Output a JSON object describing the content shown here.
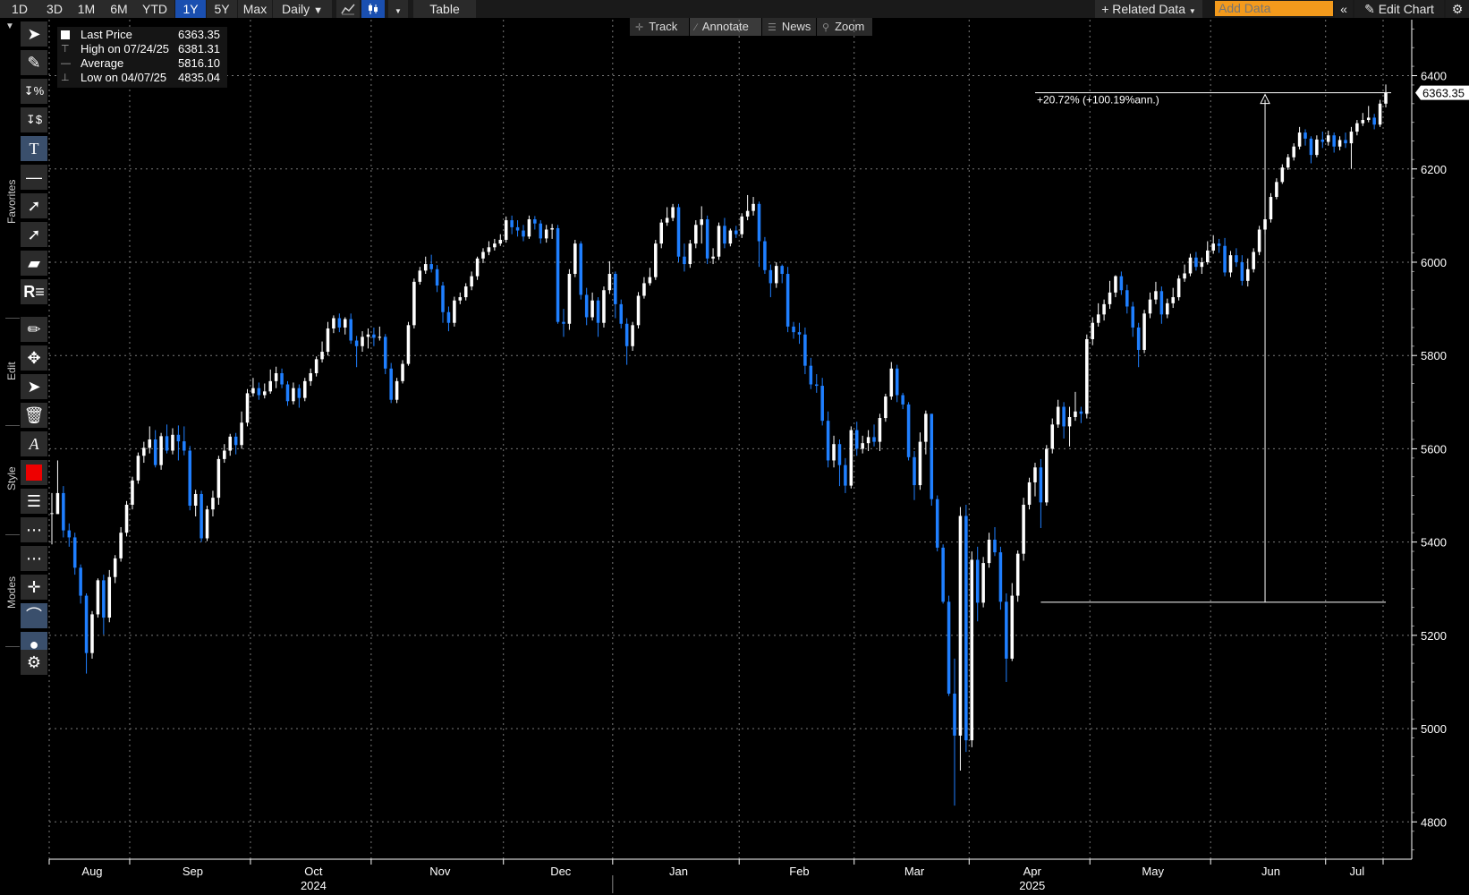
{
  "toolbar": {
    "periods": [
      "1D",
      "3D",
      "1M",
      "6M",
      "YTD",
      "1Y",
      "5Y",
      "Max"
    ],
    "active_period": "1Y",
    "frequency": "Daily",
    "table_label": "Table",
    "related_data": "Related Data",
    "add_data_placeholder": "Add Data",
    "edit_chart": "Edit Chart"
  },
  "subtoolbar": {
    "track": "Track",
    "annotate": "Annotate",
    "news": "News",
    "zoom": "Zoom"
  },
  "rail": {
    "favorites": "Favorites",
    "edit": "Edit",
    "style": "Style",
    "modes": "Modes"
  },
  "legend": {
    "rows": [
      {
        "name": "Last Price",
        "value": "6363.35"
      },
      {
        "name": "High on 07/24/25",
        "value": "6381.31"
      },
      {
        "name": "Average",
        "value": "5816.10"
      },
      {
        "name": "Low on 04/07/25",
        "value": "4835.04"
      }
    ]
  },
  "colors": {
    "up": "#ffffff",
    "down": "#1f7fff",
    "background": "#000000",
    "grid": "#7a7a7a",
    "price_label_bg": "#ffffff"
  },
  "chart_data": {
    "type": "candlestick",
    "frequency": "Daily",
    "ylim": [
      4720,
      6520
    ],
    "y_ticks": [
      4800,
      5000,
      5200,
      5400,
      5600,
      5800,
      6000,
      6200,
      6400
    ],
    "x_tick_labels": [
      "Aug",
      "Sep",
      "Oct",
      "Nov",
      "Dec",
      "Jan",
      "Feb",
      "Mar",
      "Apr",
      "May",
      "Jun",
      "Jul"
    ],
    "year_labels": [
      "2024",
      "2025"
    ],
    "last_price_label": "6363.35",
    "annotation": {
      "text": "+20.72% (+100.19%ann.)",
      "from_price": 5271,
      "to_price": 6363.35
    },
    "candles": [
      [
        5462,
        5462,
        5505,
        5395
      ],
      [
        5460,
        5505,
        5575,
        5500
      ],
      [
        5505,
        5425,
        5520,
        5410
      ],
      [
        5425,
        5410,
        5440,
        5390
      ],
      [
        5410,
        5345,
        5420,
        5330
      ],
      [
        5345,
        5285,
        5352,
        5268
      ],
      [
        5285,
        5162,
        5290,
        5118
      ],
      [
        5162,
        5245,
        5252,
        5150
      ],
      [
        5245,
        5318,
        5322,
        5238
      ],
      [
        5318,
        5238,
        5330,
        5202
      ],
      [
        5238,
        5325,
        5340,
        5228
      ],
      [
        5325,
        5365,
        5372,
        5312
      ],
      [
        5365,
        5420,
        5432,
        5358
      ],
      [
        5420,
        5480,
        5488,
        5412
      ],
      [
        5480,
        5532,
        5540,
        5470
      ],
      [
        5532,
        5585,
        5592,
        5525
      ],
      [
        5585,
        5602,
        5615,
        5570
      ],
      [
        5602,
        5620,
        5648,
        5590
      ],
      [
        5620,
        5565,
        5640,
        5560
      ],
      [
        5565,
        5627,
        5634,
        5555
      ],
      [
        5627,
        5596,
        5652,
        5590
      ],
      [
        5596,
        5630,
        5644,
        5588
      ],
      [
        5630,
        5616,
        5650,
        5575
      ],
      [
        5616,
        5596,
        5648,
        5586
      ],
      [
        5596,
        5478,
        5606,
        5468
      ],
      [
        5478,
        5503,
        5512,
        5455
      ],
      [
        5503,
        5408,
        5510,
        5400
      ],
      [
        5408,
        5470,
        5478,
        5402
      ],
      [
        5470,
        5495,
        5510,
        5455
      ],
      [
        5495,
        5578,
        5585,
        5480
      ],
      [
        5578,
        5596,
        5610,
        5570
      ],
      [
        5596,
        5626,
        5632,
        5585
      ],
      [
        5626,
        5608,
        5634,
        5588
      ],
      [
        5608,
        5656,
        5680,
        5600
      ],
      [
        5656,
        5719,
        5728,
        5648
      ],
      [
        5719,
        5730,
        5752,
        5712
      ],
      [
        5730,
        5715,
        5742,
        5705
      ],
      [
        5715,
        5723,
        5740,
        5708
      ],
      [
        5723,
        5745,
        5770,
        5718
      ],
      [
        5745,
        5762,
        5776,
        5730
      ],
      [
        5762,
        5738,
        5772,
        5730
      ],
      [
        5738,
        5702,
        5745,
        5692
      ],
      [
        5702,
        5730,
        5742,
        5695
      ],
      [
        5730,
        5709,
        5738,
        5688
      ],
      [
        5709,
        5745,
        5752,
        5702
      ],
      [
        5745,
        5762,
        5772,
        5735
      ],
      [
        5762,
        5792,
        5798,
        5755
      ],
      [
        5792,
        5808,
        5830,
        5785
      ],
      [
        5808,
        5858,
        5872,
        5800
      ],
      [
        5858,
        5880,
        5886,
        5848
      ],
      [
        5880,
        5860,
        5890,
        5850
      ],
      [
        5860,
        5878,
        5882,
        5845
      ],
      [
        5878,
        5832,
        5890,
        5825
      ],
      [
        5832,
        5820,
        5842,
        5775
      ],
      [
        5820,
        5840,
        5852,
        5808
      ],
      [
        5840,
        5845,
        5858,
        5815
      ],
      [
        5845,
        5838,
        5860,
        5820
      ],
      [
        5838,
        5840,
        5862,
        5832
      ],
      [
        5840,
        5772,
        5846,
        5760
      ],
      [
        5772,
        5705,
        5784,
        5698
      ],
      [
        5705,
        5745,
        5752,
        5698
      ],
      [
        5745,
        5782,
        5790,
        5740
      ],
      [
        5782,
        5865,
        5872,
        5778
      ],
      [
        5865,
        5958,
        5965,
        5858
      ],
      [
        5958,
        5982,
        5990,
        5952
      ],
      [
        5982,
        5996,
        6012,
        5975
      ],
      [
        5996,
        5985,
        6016,
        5978
      ],
      [
        5985,
        5950,
        5994,
        5936
      ],
      [
        5950,
        5893,
        5958,
        5870
      ],
      [
        5893,
        5870,
        5905,
        5852
      ],
      [
        5870,
        5918,
        5926,
        5862
      ],
      [
        5918,
        5925,
        5935,
        5910
      ],
      [
        5925,
        5948,
        5955,
        5918
      ],
      [
        5948,
        5970,
        5980,
        5940
      ],
      [
        5970,
        6008,
        6012,
        5962
      ],
      [
        6008,
        6022,
        6030,
        5998
      ],
      [
        6022,
        6032,
        6045,
        6015
      ],
      [
        6032,
        6040,
        6050,
        6025
      ],
      [
        6040,
        6048,
        6060,
        6035
      ],
      [
        6048,
        6090,
        6098,
        6042
      ],
      [
        6090,
        6075,
        6100,
        6060
      ],
      [
        6075,
        6068,
        6090,
        6055
      ],
      [
        6068,
        6055,
        6080,
        6045
      ],
      [
        6055,
        6092,
        6100,
        6050
      ],
      [
        6092,
        6083,
        6099,
        6070
      ],
      [
        6083,
        6051,
        6090,
        6040
      ],
      [
        6051,
        6070,
        6080,
        6042
      ],
      [
        6070,
        6073,
        6082,
        6050
      ],
      [
        6073,
        5872,
        6080,
        5868
      ],
      [
        5872,
        5868,
        5900,
        5840
      ],
      [
        5868,
        5975,
        5985,
        5855
      ],
      [
        5975,
        6040,
        6048,
        5968
      ],
      [
        6040,
        5930,
        6045,
        5920
      ],
      [
        5930,
        5882,
        5945,
        5865
      ],
      [
        5882,
        5918,
        5935,
        5875
      ],
      [
        5918,
        5870,
        5925,
        5840
      ],
      [
        5870,
        5940,
        5948,
        5860
      ],
      [
        5940,
        5975,
        6002,
        5932
      ],
      [
        5975,
        5910,
        5980,
        5880
      ],
      [
        5910,
        5868,
        5920,
        5858
      ],
      [
        5868,
        5820,
        5880,
        5780
      ],
      [
        5820,
        5865,
        5872,
        5810
      ],
      [
        5865,
        5928,
        5936,
        5858
      ],
      [
        5928,
        5955,
        5968,
        5922
      ],
      [
        5955,
        5968,
        5988,
        5950
      ],
      [
        5968,
        6040,
        6048,
        5962
      ],
      [
        6040,
        6085,
        6092,
        6030
      ],
      [
        6085,
        6095,
        6118,
        6078
      ],
      [
        6095,
        6118,
        6125,
        6088
      ],
      [
        6118,
        6012,
        6125,
        6000
      ],
      [
        6012,
        5996,
        6040,
        5980
      ],
      [
        5996,
        6040,
        6048,
        5988
      ],
      [
        6040,
        6080,
        6090,
        6030
      ],
      [
        6080,
        6092,
        6120,
        6040
      ],
      [
        6092,
        6008,
        6100,
        5996
      ],
      [
        6008,
        6012,
        6030,
        5996
      ],
      [
        6012,
        6078,
        6085,
        6005
      ],
      [
        6078,
        6040,
        6095,
        6030
      ],
      [
        6040,
        6068,
        6072,
        6034
      ],
      [
        6068,
        6060,
        6078,
        6052
      ],
      [
        6060,
        6098,
        6105,
        6052
      ],
      [
        6098,
        6110,
        6144,
        6090
      ],
      [
        6110,
        6125,
        6140,
        6100
      ],
      [
        6125,
        6045,
        6130,
        5990
      ],
      [
        6045,
        5983,
        6054,
        5975
      ],
      [
        5983,
        5955,
        5995,
        5925
      ],
      [
        5955,
        5992,
        6000,
        5945
      ],
      [
        5992,
        5975,
        5995,
        5955
      ],
      [
        5975,
        5862,
        5990,
        5850
      ],
      [
        5862,
        5850,
        5872,
        5836
      ],
      [
        5850,
        5845,
        5870,
        5825
      ],
      [
        5845,
        5778,
        5860,
        5760
      ],
      [
        5778,
        5738,
        5795,
        5728
      ],
      [
        5738,
        5735,
        5760,
        5720
      ],
      [
        5735,
        5660,
        5752,
        5650
      ],
      [
        5660,
        5575,
        5680,
        5560
      ],
      [
        5575,
        5610,
        5628,
        5560
      ],
      [
        5610,
        5565,
        5620,
        5520
      ],
      [
        5565,
        5521,
        5580,
        5505
      ],
      [
        5521,
        5640,
        5648,
        5515
      ],
      [
        5640,
        5600,
        5658,
        5585
      ],
      [
        5600,
        5612,
        5628,
        5590
      ],
      [
        5612,
        5625,
        5640,
        5595
      ],
      [
        5625,
        5615,
        5652,
        5605
      ],
      [
        5615,
        5666,
        5675,
        5595
      ],
      [
        5666,
        5712,
        5718,
        5658
      ],
      [
        5712,
        5772,
        5786,
        5705
      ],
      [
        5772,
        5715,
        5780,
        5700
      ],
      [
        5715,
        5695,
        5720,
        5685
      ],
      [
        5695,
        5582,
        5700,
        5575
      ],
      [
        5582,
        5522,
        5595,
        5490
      ],
      [
        5522,
        5615,
        5635,
        5512
      ],
      [
        5615,
        5675,
        5682,
        5588
      ],
      [
        5675,
        5492,
        5675,
        5478
      ],
      [
        5492,
        5388,
        5500,
        5380
      ],
      [
        5388,
        5272,
        5395,
        5268
      ],
      [
        5272,
        5075,
        5285,
        5070
      ],
      [
        5075,
        4985,
        5150,
        4835
      ],
      [
        4985,
        5456,
        5475,
        4910
      ],
      [
        5456,
        4975,
        5480,
        4950
      ],
      [
        4975,
        5362,
        5380,
        4960
      ],
      [
        5362,
        5270,
        5390,
        5230
      ],
      [
        5270,
        5355,
        5368,
        5260
      ],
      [
        5355,
        5405,
        5420,
        5345
      ],
      [
        5405,
        5378,
        5432,
        5370
      ],
      [
        5378,
        5272,
        5390,
        5255
      ],
      [
        5272,
        5150,
        5290,
        5100
      ],
      [
        5150,
        5285,
        5312,
        5145
      ],
      [
        5285,
        5375,
        5382,
        5272
      ],
      [
        5375,
        5480,
        5495,
        5360
      ],
      [
        5480,
        5528,
        5538,
        5470
      ],
      [
        5528,
        5560,
        5570,
        5498
      ],
      [
        5560,
        5485,
        5578,
        5430
      ],
      [
        5485,
        5600,
        5608,
        5478
      ],
      [
        5600,
        5652,
        5665,
        5590
      ],
      [
        5652,
        5690,
        5705,
        5645
      ],
      [
        5690,
        5648,
        5700,
        5622
      ],
      [
        5648,
        5668,
        5690,
        5605
      ],
      [
        5668,
        5680,
        5722,
        5660
      ],
      [
        5680,
        5675,
        5690,
        5655
      ],
      [
        5675,
        5835,
        5845,
        5665
      ],
      [
        5835,
        5870,
        5882,
        5822
      ],
      [
        5870,
        5888,
        5912,
        5862
      ],
      [
        5888,
        5910,
        5920,
        5875
      ],
      [
        5910,
        5935,
        5960,
        5900
      ],
      [
        5935,
        5970,
        5972,
        5925
      ],
      [
        5970,
        5940,
        5980,
        5930
      ],
      [
        5940,
        5905,
        5952,
        5890
      ],
      [
        5905,
        5860,
        5915,
        5840
      ],
      [
        5860,
        5812,
        5870,
        5775
      ],
      [
        5812,
        5890,
        5898,
        5805
      ],
      [
        5890,
        5920,
        5935,
        5880
      ],
      [
        5920,
        5938,
        5958,
        5910
      ],
      [
        5938,
        5888,
        5948,
        5868
      ],
      [
        5888,
        5912,
        5922,
        5880
      ],
      [
        5912,
        5925,
        5945,
        5902
      ],
      [
        5925,
        5965,
        5972,
        5918
      ],
      [
        5965,
        5976,
        5995,
        5958
      ],
      [
        5976,
        6010,
        6018,
        5970
      ],
      [
        6010,
        5990,
        6022,
        5982
      ],
      [
        5990,
        6000,
        6010,
        5975
      ],
      [
        6000,
        6025,
        6045,
        5995
      ],
      [
        6025,
        6040,
        6058,
        6018
      ],
      [
        6040,
        6035,
        6050,
        6020
      ],
      [
        6035,
        5978,
        6052,
        5970
      ],
      [
        5978,
        6015,
        6024,
        5968
      ],
      [
        6015,
        6000,
        6030,
        5990
      ],
      [
        6000,
        5960,
        6015,
        5950
      ],
      [
        5960,
        5985,
        6008,
        5948
      ],
      [
        5985,
        6022,
        6030,
        5978
      ],
      [
        6022,
        6070,
        6078,
        6015
      ],
      [
        6070,
        6092,
        6100,
        6060
      ],
      [
        6092,
        6140,
        6148,
        6085
      ],
      [
        6140,
        6172,
        6180,
        6135
      ],
      [
        6172,
        6203,
        6210,
        6168
      ],
      [
        6203,
        6225,
        6232,
        6198
      ],
      [
        6225,
        6248,
        6255,
        6218
      ],
      [
        6248,
        6278,
        6290,
        6242
      ],
      [
        6278,
        6265,
        6285,
        6250
      ],
      [
        6265,
        6230,
        6270,
        6212
      ],
      [
        6230,
        6263,
        6272,
        6225
      ],
      [
        6263,
        6258,
        6280,
        6245
      ],
      [
        6258,
        6272,
        6282,
        6250
      ],
      [
        6272,
        6248,
        6278,
        6235
      ],
      [
        6248,
        6262,
        6270,
        6240
      ],
      [
        6262,
        6255,
        6278,
        6245
      ],
      [
        6255,
        6280,
        6290,
        6200
      ],
      [
        6280,
        6298,
        6305,
        6272
      ],
      [
        6298,
        6305,
        6320,
        6292
      ],
      [
        6305,
        6310,
        6335,
        6300
      ],
      [
        6310,
        6295,
        6318,
        6285
      ],
      [
        6295,
        6340,
        6348,
        6290
      ],
      [
        6340,
        6363,
        6381,
        6332
      ]
    ]
  }
}
